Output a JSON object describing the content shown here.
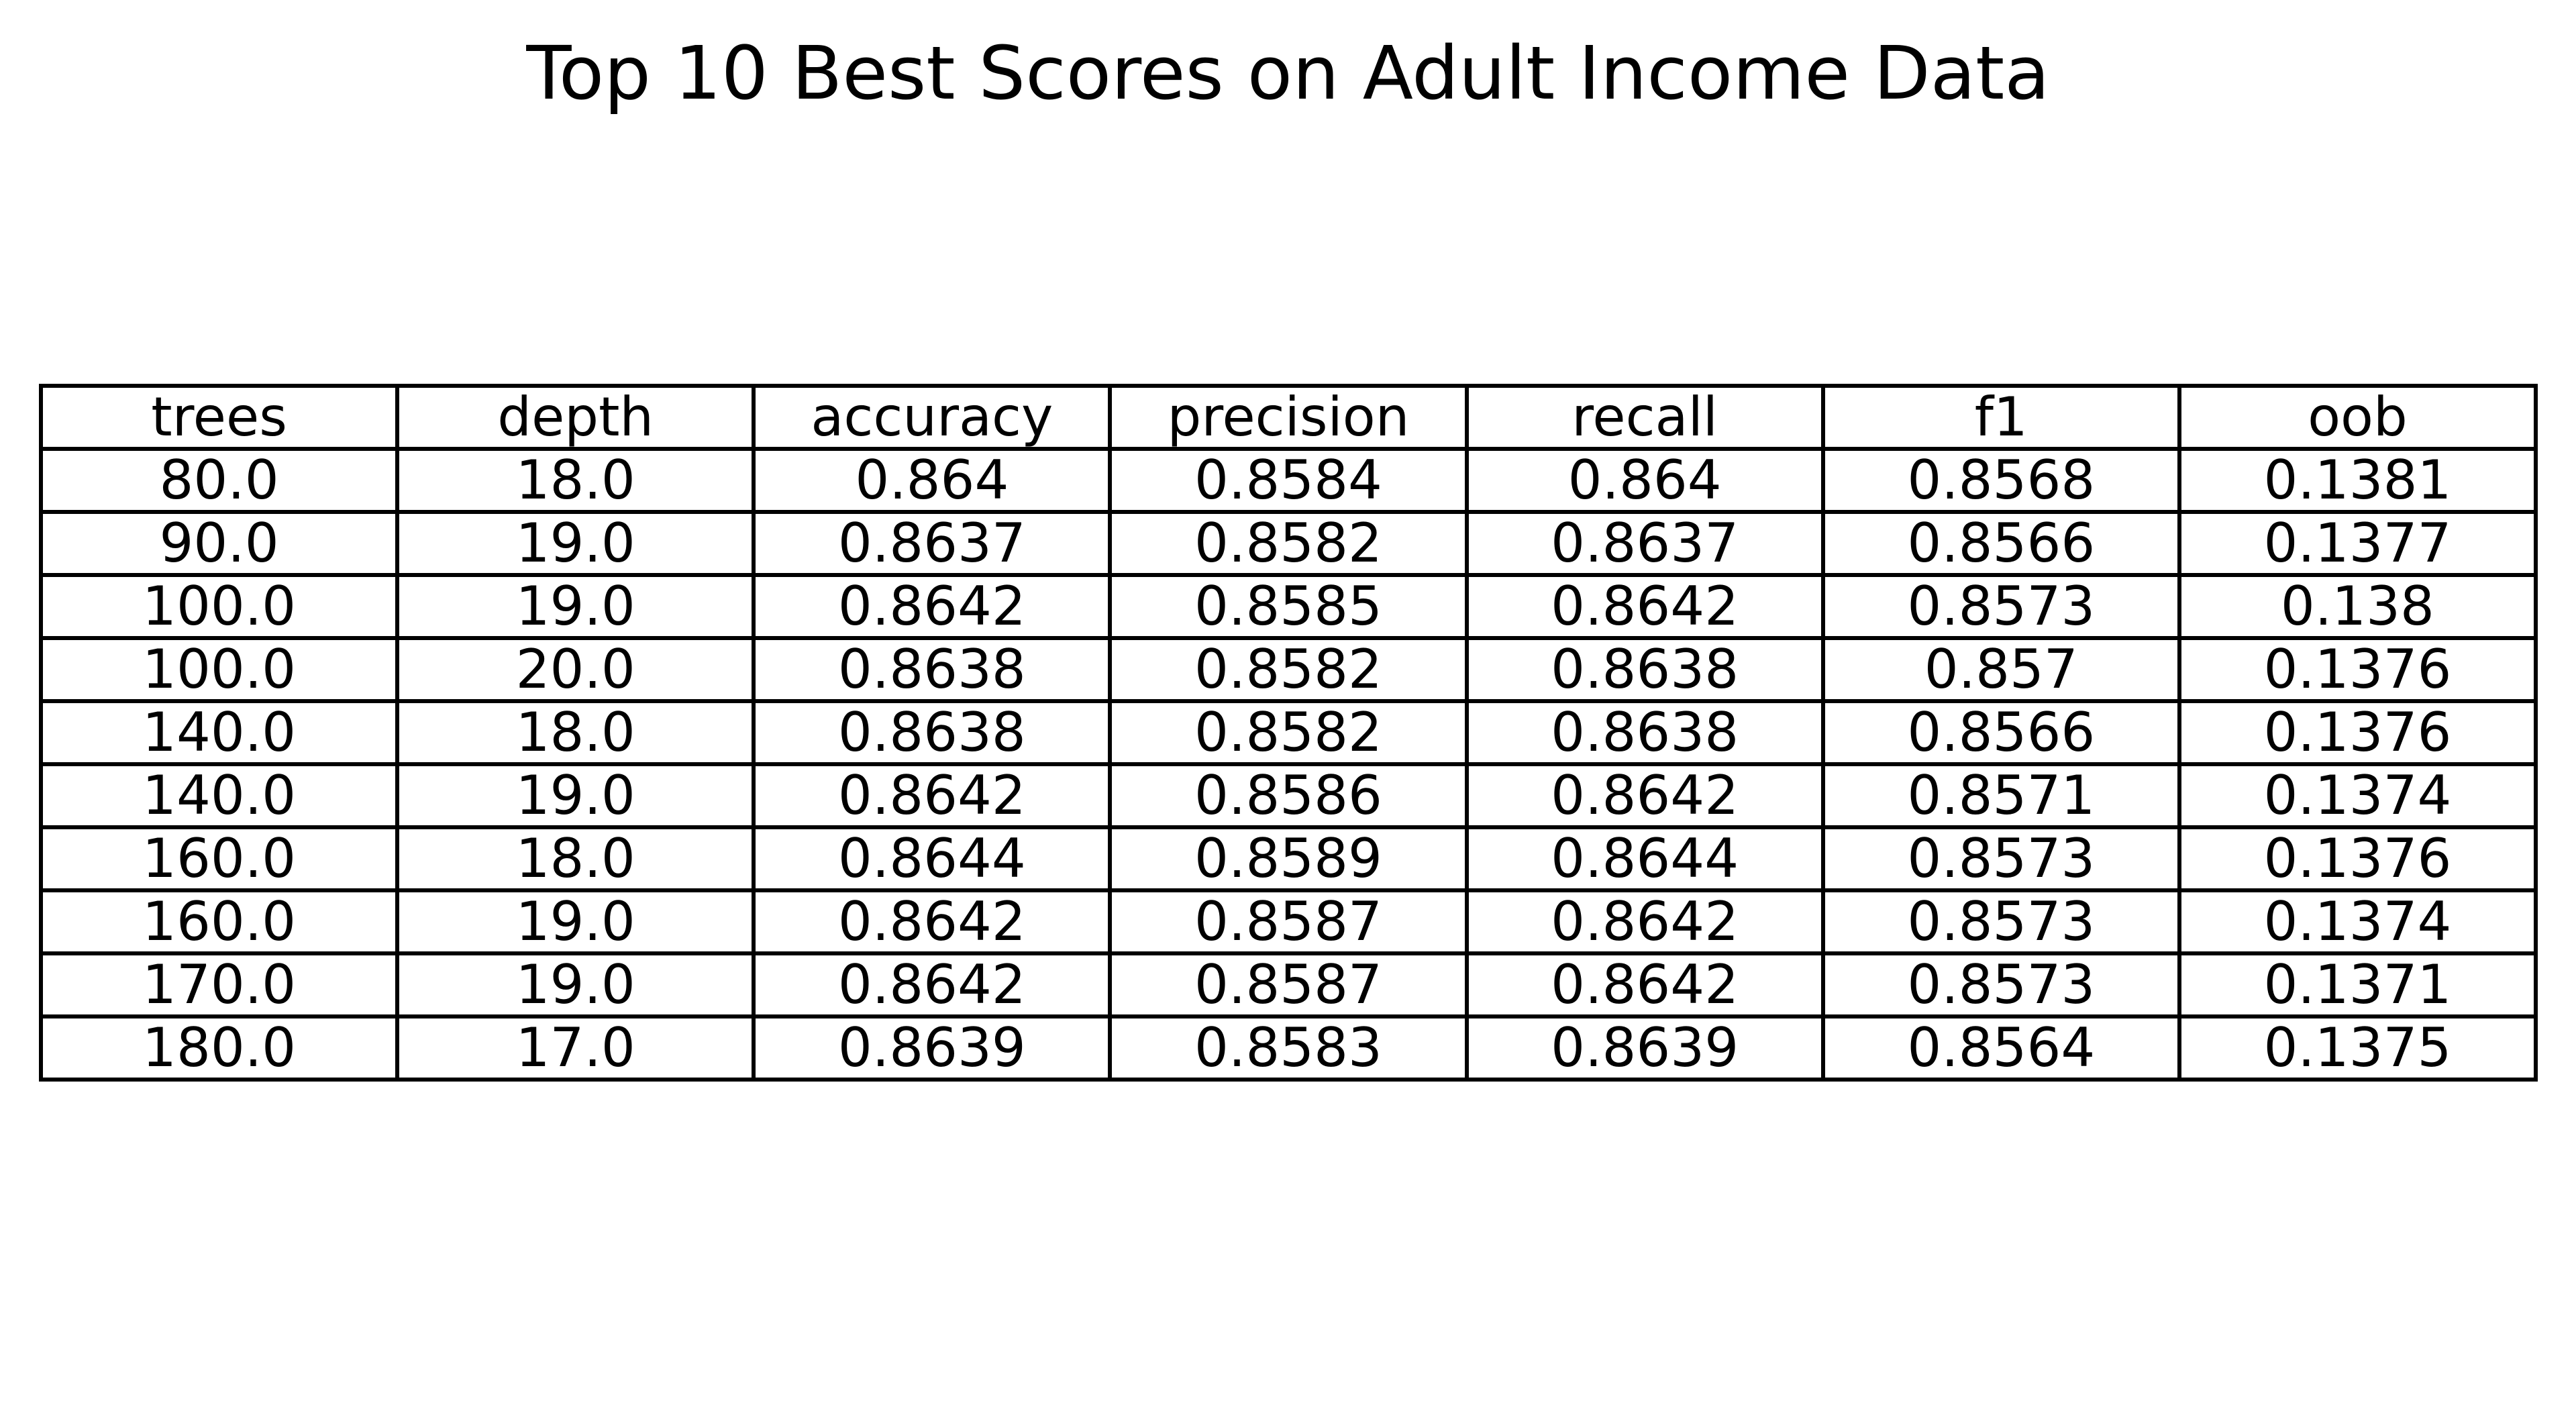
{
  "chart_data": {
    "type": "table",
    "title": "Top 10 Best Scores on Adult Income Data",
    "columns": [
      "trees",
      "depth",
      "accuracy",
      "precision",
      "recall",
      "f1",
      "oob"
    ],
    "rows": [
      [
        "80.0",
        "18.0",
        "0.864",
        "0.8584",
        "0.864",
        "0.8568",
        "0.1381"
      ],
      [
        "90.0",
        "19.0",
        "0.8637",
        "0.8582",
        "0.8637",
        "0.8566",
        "0.1377"
      ],
      [
        "100.0",
        "19.0",
        "0.8642",
        "0.8585",
        "0.8642",
        "0.8573",
        "0.138"
      ],
      [
        "100.0",
        "20.0",
        "0.8638",
        "0.8582",
        "0.8638",
        "0.857",
        "0.1376"
      ],
      [
        "140.0",
        "18.0",
        "0.8638",
        "0.8582",
        "0.8638",
        "0.8566",
        "0.1376"
      ],
      [
        "140.0",
        "19.0",
        "0.8642",
        "0.8586",
        "0.8642",
        "0.8571",
        "0.1374"
      ],
      [
        "160.0",
        "18.0",
        "0.8644",
        "0.8589",
        "0.8644",
        "0.8573",
        "0.1376"
      ],
      [
        "160.0",
        "19.0",
        "0.8642",
        "0.8587",
        "0.8642",
        "0.8573",
        "0.1374"
      ],
      [
        "170.0",
        "19.0",
        "0.8642",
        "0.8587",
        "0.8642",
        "0.8573",
        "0.1371"
      ],
      [
        "180.0",
        "17.0",
        "0.8639",
        "0.8583",
        "0.8639",
        "0.8564",
        "0.1375"
      ]
    ],
    "grid": true,
    "border_color": "#000000"
  }
}
